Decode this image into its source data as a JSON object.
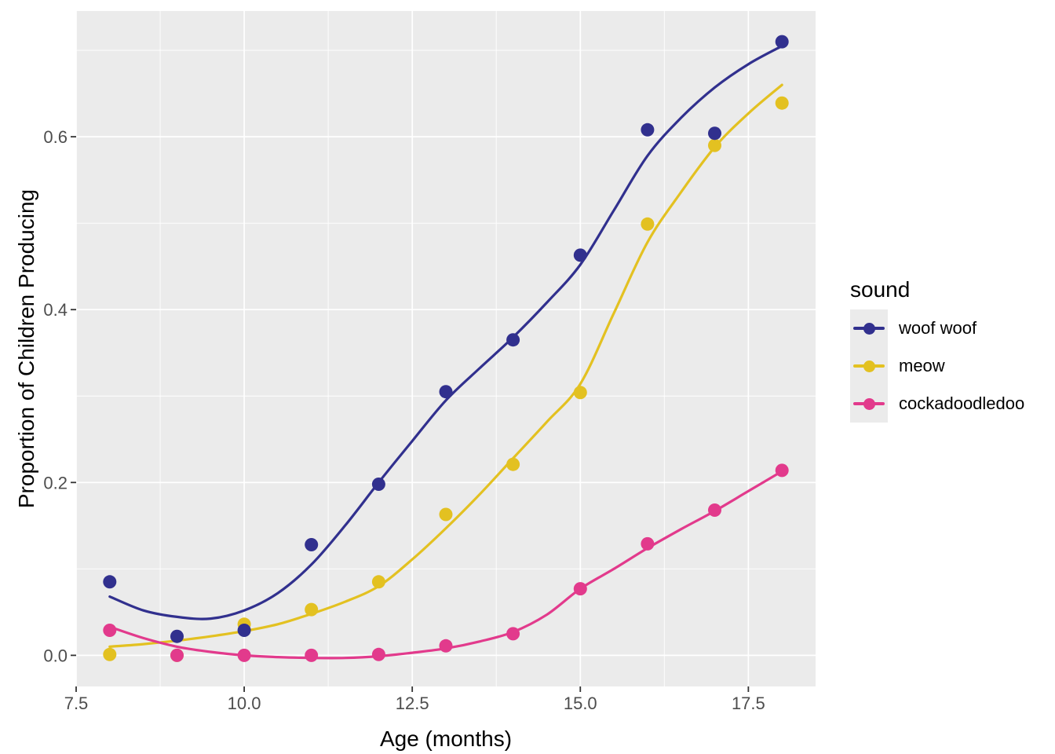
{
  "chart_data": {
    "type": "scatter",
    "title": "",
    "xlabel": "Age (months)",
    "ylabel": "Proportion of Children Producing",
    "legend_title": "sound",
    "legend_position": "right",
    "grid": true,
    "panel_bg": "#EBEBEB",
    "grid_color": "#FFFFFF",
    "tick_color": "#333333",
    "tick_label_color": "#4D4D4D",
    "x_domain": [
      7.5,
      18.5
    ],
    "y_domain": [
      -0.036,
      0.7455
    ],
    "x_ticks": [
      7.5,
      10.0,
      12.5,
      15.0,
      17.5
    ],
    "x_tick_labels": [
      "7.5",
      "10.0",
      "12.5",
      "15.0",
      "17.5"
    ],
    "x_minor_ticks": [
      8.75,
      11.25,
      13.75,
      16.25
    ],
    "y_ticks": [
      0.0,
      0.2,
      0.4,
      0.6
    ],
    "y_tick_labels": [
      "0.0",
      "0.2",
      "0.4",
      "0.6"
    ],
    "y_minor_ticks": [
      0.1,
      0.3,
      0.5,
      0.7
    ],
    "point_draw_order": [
      1,
      0,
      2
    ],
    "series": [
      {
        "name": "woof woof",
        "color": "#31308E",
        "points": [
          [
            8,
            0.085
          ],
          [
            9,
            0.022
          ],
          [
            10,
            0.029
          ],
          [
            11,
            0.128
          ],
          [
            12,
            0.198
          ],
          [
            13,
            0.305
          ],
          [
            14,
            0.365
          ],
          [
            15,
            0.463
          ],
          [
            16,
            0.608
          ],
          [
            17,
            0.604
          ],
          [
            18,
            0.71
          ]
        ],
        "smooth": [
          [
            8,
            0.068
          ],
          [
            8.5,
            0.052
          ],
          [
            9,
            0.0445
          ],
          [
            9.5,
            0.0425
          ],
          [
            10,
            0.052
          ],
          [
            10.5,
            0.072
          ],
          [
            11,
            0.105
          ],
          [
            11.5,
            0.15
          ],
          [
            12,
            0.2
          ],
          [
            12.5,
            0.248
          ],
          [
            13,
            0.295
          ],
          [
            13.5,
            0.332
          ],
          [
            14,
            0.368
          ],
          [
            14.5,
            0.408
          ],
          [
            15,
            0.452
          ],
          [
            15.5,
            0.515
          ],
          [
            16,
            0.578
          ],
          [
            16.5,
            0.622
          ],
          [
            17,
            0.657
          ],
          [
            17.5,
            0.684
          ],
          [
            18,
            0.705
          ]
        ]
      },
      {
        "name": "meow",
        "color": "#E3C121",
        "points": [
          [
            8,
            0.001
          ],
          [
            9,
            0.0
          ],
          [
            10,
            0.036
          ],
          [
            11,
            0.053
          ],
          [
            12,
            0.085
          ],
          [
            13,
            0.163
          ],
          [
            14,
            0.221
          ],
          [
            15,
            0.304
          ],
          [
            16,
            0.499
          ],
          [
            17,
            0.59
          ],
          [
            18,
            0.639
          ]
        ],
        "smooth": [
          [
            8,
            0.01
          ],
          [
            8.5,
            0.013
          ],
          [
            9,
            0.017
          ],
          [
            9.5,
            0.022
          ],
          [
            10,
            0.028
          ],
          [
            10.5,
            0.036
          ],
          [
            11,
            0.048
          ],
          [
            11.5,
            0.062
          ],
          [
            12,
            0.08
          ],
          [
            12.5,
            0.111
          ],
          [
            13,
            0.147
          ],
          [
            13.5,
            0.186
          ],
          [
            14,
            0.228
          ],
          [
            14.5,
            0.27
          ],
          [
            15,
            0.314
          ],
          [
            15.5,
            0.396
          ],
          [
            16,
            0.478
          ],
          [
            16.5,
            0.536
          ],
          [
            17,
            0.588
          ],
          [
            17.5,
            0.627
          ],
          [
            18,
            0.66
          ]
        ]
      },
      {
        "name": "cockadoodledoo",
        "color": "#E23A8C",
        "points": [
          [
            8,
            0.029
          ],
          [
            9,
            0.0
          ],
          [
            10,
            0.0
          ],
          [
            11,
            0.0
          ],
          [
            12,
            0.001
          ],
          [
            13,
            0.011
          ],
          [
            14,
            0.025
          ],
          [
            15,
            0.077
          ],
          [
            16,
            0.129
          ],
          [
            17,
            0.168
          ],
          [
            18,
            0.214
          ]
        ],
        "smooth": [
          [
            8,
            0.033
          ],
          [
            8.5,
            0.02
          ],
          [
            9,
            0.01
          ],
          [
            9.5,
            0.004
          ],
          [
            10,
            0.0
          ],
          [
            10.5,
            -0.002
          ],
          [
            11,
            -0.003
          ],
          [
            11.5,
            -0.003
          ],
          [
            12,
            -0.001
          ],
          [
            12.5,
            0.003
          ],
          [
            13,
            0.008
          ],
          [
            13.5,
            0.016
          ],
          [
            14,
            0.027
          ],
          [
            14.5,
            0.047
          ],
          [
            15,
            0.077
          ],
          [
            15.5,
            0.1
          ],
          [
            16,
            0.124
          ],
          [
            16.5,
            0.146
          ],
          [
            17,
            0.167
          ],
          [
            17.5,
            0.19
          ],
          [
            18,
            0.213
          ]
        ]
      }
    ]
  }
}
